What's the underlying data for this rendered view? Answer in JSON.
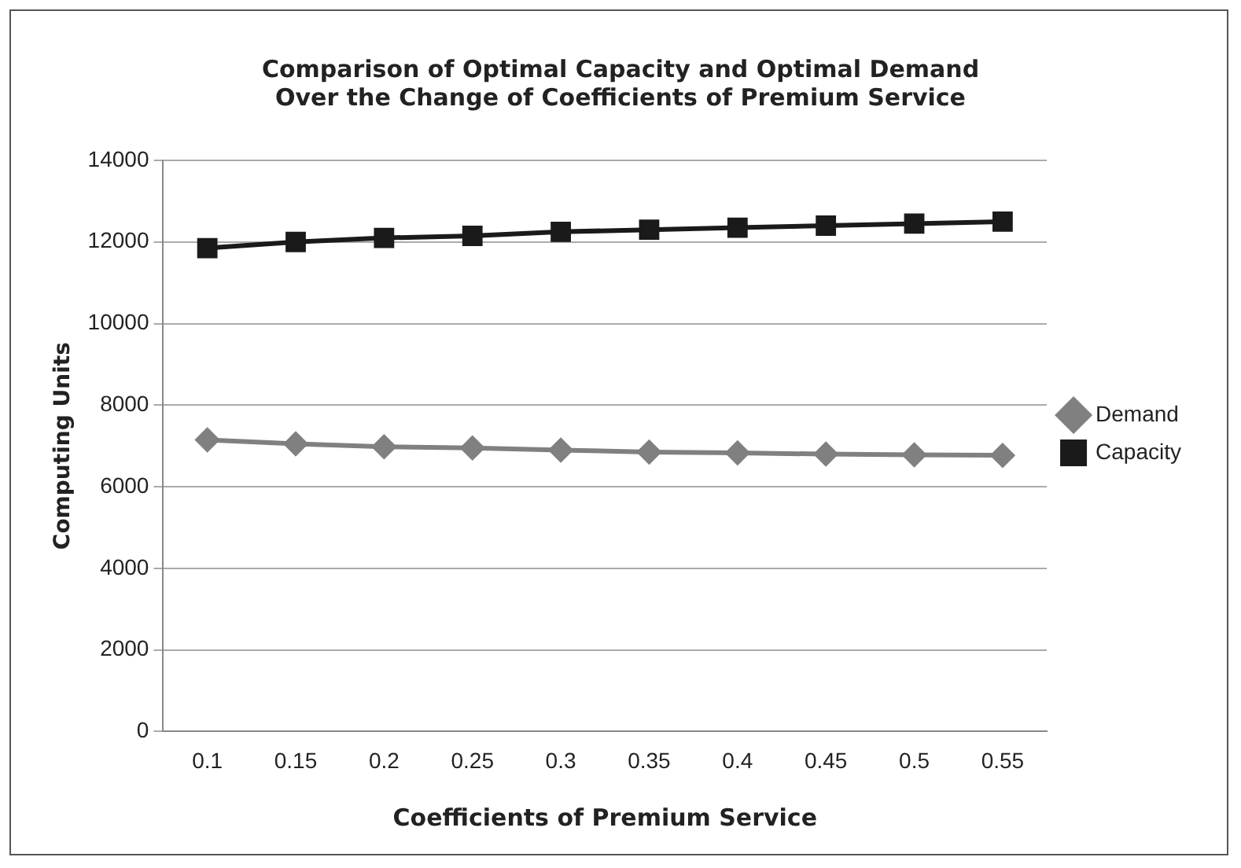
{
  "chart_data": {
    "type": "line",
    "title": "Comparison of Optimal Capacity and Optimal Demand\nOver the Change of Coefficients of Premium Service",
    "xlabel": "Coefficients of Premium Service",
    "ylabel": "Computing Units",
    "categories": [
      "0.1",
      "0.15",
      "0.2",
      "0.25",
      "0.3",
      "0.35",
      "0.4",
      "0.45",
      "0.5",
      "0.55"
    ],
    "series": [
      {
        "name": "Demand",
        "color": "#808080",
        "marker": "diamond",
        "values": [
          7150,
          7050,
          6980,
          6950,
          6900,
          6850,
          6830,
          6800,
          6780,
          6770
        ]
      },
      {
        "name": "Capacity",
        "color": "#1a1a1a",
        "marker": "square",
        "values": [
          11850,
          12000,
          12100,
          12150,
          12250,
          12300,
          12350,
          12400,
          12450,
          12500
        ]
      }
    ],
    "ylim": [
      0,
      14000
    ],
    "yticks": [
      0,
      2000,
      4000,
      6000,
      8000,
      10000,
      12000,
      14000
    ],
    "grid": "y",
    "legend": "right"
  }
}
